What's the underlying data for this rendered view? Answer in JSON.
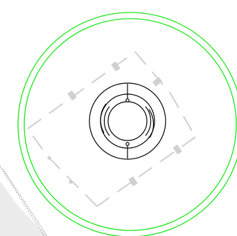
{
  "viewer": {
    "type": "cad-drawing-viewport"
  },
  "colors": {
    "background": "#ffffff",
    "boundary_ring": "#19e619",
    "linework": "#cfcfcf",
    "fitting": "#000000",
    "hatch_panel": "#ececec",
    "hatch_stroke": "#9a9a9a"
  },
  "drawing": {
    "outer_rings": {
      "count": 2
    },
    "center_fitting": {
      "icon": "circular-fitting-symbol",
      "ring_count": 3,
      "markers": 2
    },
    "dashed_outline": {
      "segments_with_inline_markers": 6
    },
    "hatched_region": {
      "corner": "bottom-left"
    }
  }
}
